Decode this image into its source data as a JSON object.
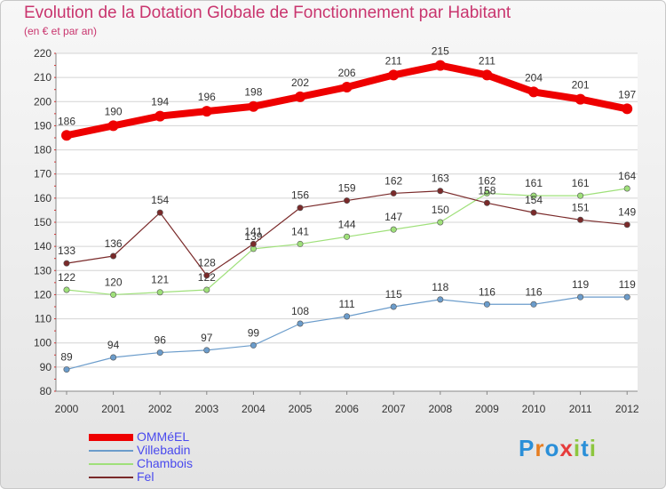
{
  "header": {
    "title": "Evolution de la Dotation Globale de Fonctionnement par Habitant",
    "subtitle": "(en € et par an)"
  },
  "logo": {
    "text": "Proxiti",
    "colors": [
      "#2a8fd8",
      "#e67e22",
      "#2a8fd8",
      "#e63c3c",
      "#8dc63f",
      "#2a8fd8",
      "#8dc63f"
    ]
  },
  "chart_data": {
    "type": "line",
    "x": [
      "2000",
      "2001",
      "2002",
      "2003",
      "2004",
      "2005",
      "2006",
      "2007",
      "2008",
      "2009",
      "2010",
      "2011",
      "2012"
    ],
    "ylim": [
      80,
      220
    ],
    "yticks": [
      "80",
      "90",
      "100",
      "110",
      "120",
      "130",
      "140",
      "150",
      "160",
      "170",
      "180",
      "190",
      "200",
      "210",
      "220"
    ],
    "grid": "horizontal",
    "legend_position": "bottom-left",
    "series": [
      {
        "name": "OMMéEL",
        "color": "#ee0000",
        "values": [
          186,
          190,
          194,
          196,
          198,
          202,
          206,
          211,
          215,
          211,
          204,
          201,
          197
        ],
        "labels": [
          "186",
          "190",
          "194",
          "196",
          "198",
          "202",
          "206",
          "211",
          "215",
          "211",
          "204",
          "201",
          "197"
        ]
      },
      {
        "name": "Villebadin",
        "color": "#6b9ccb",
        "values": [
          89,
          94,
          96,
          97,
          99,
          108,
          111,
          115,
          118,
          116,
          116,
          119,
          119
        ],
        "labels": [
          "89",
          "94",
          "96",
          "97",
          "99",
          "108",
          "111",
          "115",
          "118",
          "116",
          "116",
          "119",
          "119"
        ]
      },
      {
        "name": "Chambois",
        "color": "#9fe07a",
        "values": [
          122,
          120,
          121,
          122,
          139,
          141,
          144,
          147,
          150,
          162,
          161,
          161,
          164
        ],
        "labels": [
          "122",
          "120",
          "121",
          "122",
          "139",
          "141",
          "144",
          "147",
          "150",
          "162",
          "161",
          "161",
          "164"
        ]
      },
      {
        "name": "Fel",
        "color": "#7a2a2a",
        "values": [
          133,
          136,
          154,
          128,
          141,
          156,
          159,
          162,
          163,
          158,
          154,
          151,
          149
        ],
        "labels": [
          "133",
          "136",
          "154",
          "128",
          "141",
          "156",
          "159",
          "162",
          "163",
          "158",
          "154",
          "151",
          "149"
        ]
      }
    ]
  }
}
